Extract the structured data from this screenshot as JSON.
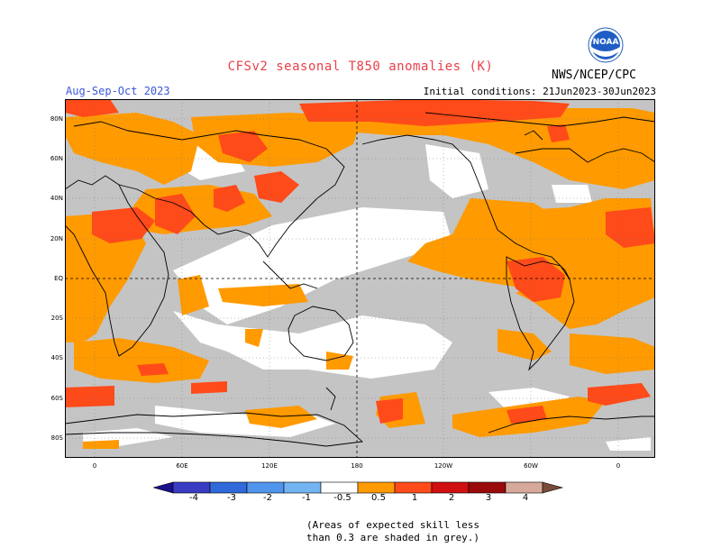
{
  "title": "CFSv2 seasonal T850 anomalies (K)",
  "season": "Aug-Sep-Oct 2023",
  "initial_conditions": "Initial conditions: 21Jun2023-30Jun2023",
  "agency": "NWS/NCEP/CPC",
  "logo_text": "NOAA",
  "latitude_labels": [
    "80N",
    "60N",
    "40N",
    "20N",
    "EQ",
    "20S",
    "40S",
    "60S",
    "80S"
  ],
  "longitude_labels": [
    "0",
    "60E",
    "120E",
    "180",
    "120W",
    "60W",
    "0"
  ],
  "colorbar": {
    "tick_labels": [
      "-4",
      "-3",
      "-2",
      "-1",
      "-0.5",
      "0.5",
      "1",
      "2",
      "3",
      "4"
    ],
    "colors": [
      "#1b0f8a",
      "#3a3cc4",
      "#2f69da",
      "#4f95ec",
      "#74b4f2",
      "#ffffff",
      "#ff9a00",
      "#ff4a1a",
      "#d01010",
      "#9a0a0a",
      "#d7a99a",
      "#7a4a3a"
    ]
  },
  "colors": {
    "no_skill_grey": "#c4c4c4",
    "neutral": "#ffffff",
    "warm_0_5_1": "#ff9a00",
    "warm_1_2": "#ff4a1a",
    "title": "#e8404a",
    "season_text": "#3b57d6"
  },
  "footnote": [
    "(Areas of expected skill less",
    "than 0.3 are shaded in grey.)"
  ]
}
